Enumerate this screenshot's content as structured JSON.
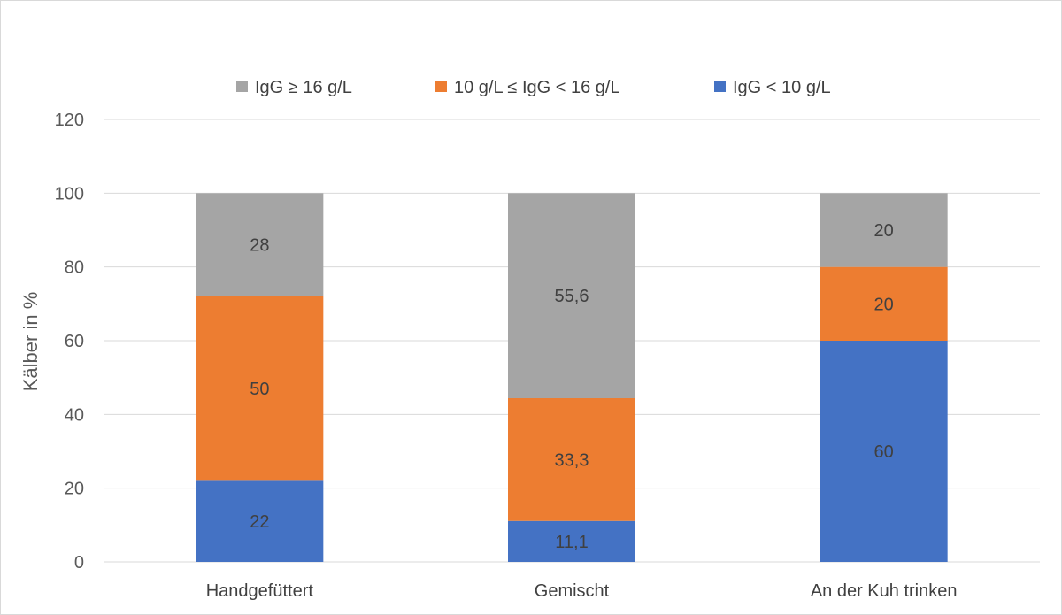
{
  "chart_data": {
    "type": "bar",
    "stacked": true,
    "title": "",
    "xlabel": "",
    "ylabel": "Kälber in %",
    "ylim": [
      0,
      120
    ],
    "yticks": [
      0,
      20,
      40,
      60,
      80,
      100,
      120
    ],
    "grid": true,
    "legend_position": "top",
    "categories": [
      "Handgefüttert",
      "Gemischt",
      "An der Kuh trinken"
    ],
    "series": [
      {
        "name": "IgG < 10 g/L",
        "color": "#4472C4",
        "values": [
          22,
          11.1,
          60
        ],
        "labels": [
          "22",
          "11,1",
          "60"
        ]
      },
      {
        "name": "10 g/L ≤ IgG < 16 g/L",
        "color": "#ED7D31",
        "values": [
          50,
          33.3,
          20
        ],
        "labels": [
          "50",
          "33,3",
          "20"
        ]
      },
      {
        "name": "IgG ≥ 16 g/L",
        "color": "#A5A5A5",
        "values": [
          28,
          55.6,
          20
        ],
        "labels": [
          "28",
          "55,6",
          "20"
        ]
      }
    ],
    "legend_order": [
      2,
      1,
      0
    ]
  }
}
